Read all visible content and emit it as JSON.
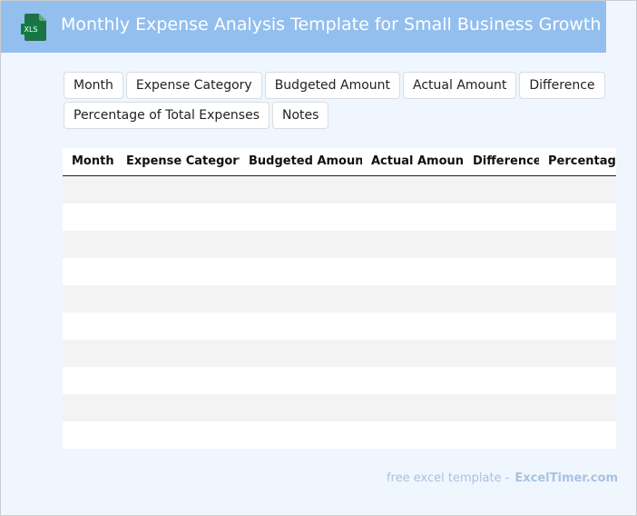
{
  "header": {
    "icon_label": "XLS",
    "title": "Monthly Expense Analysis Template for Small Business Growth"
  },
  "columns": [
    "Month",
    "Expense Category",
    "Budgeted Amount",
    "Actual Amount",
    "Difference",
    "Percentage of Total Expenses",
    "Notes"
  ],
  "table": {
    "header": [
      "Month",
      "Expense Category",
      "Budgeted Amount",
      "Actual Amount",
      "Difference",
      "Percentage"
    ]
  },
  "footer": {
    "text": "free excel template -",
    "site": "ExcelTimer.com"
  }
}
